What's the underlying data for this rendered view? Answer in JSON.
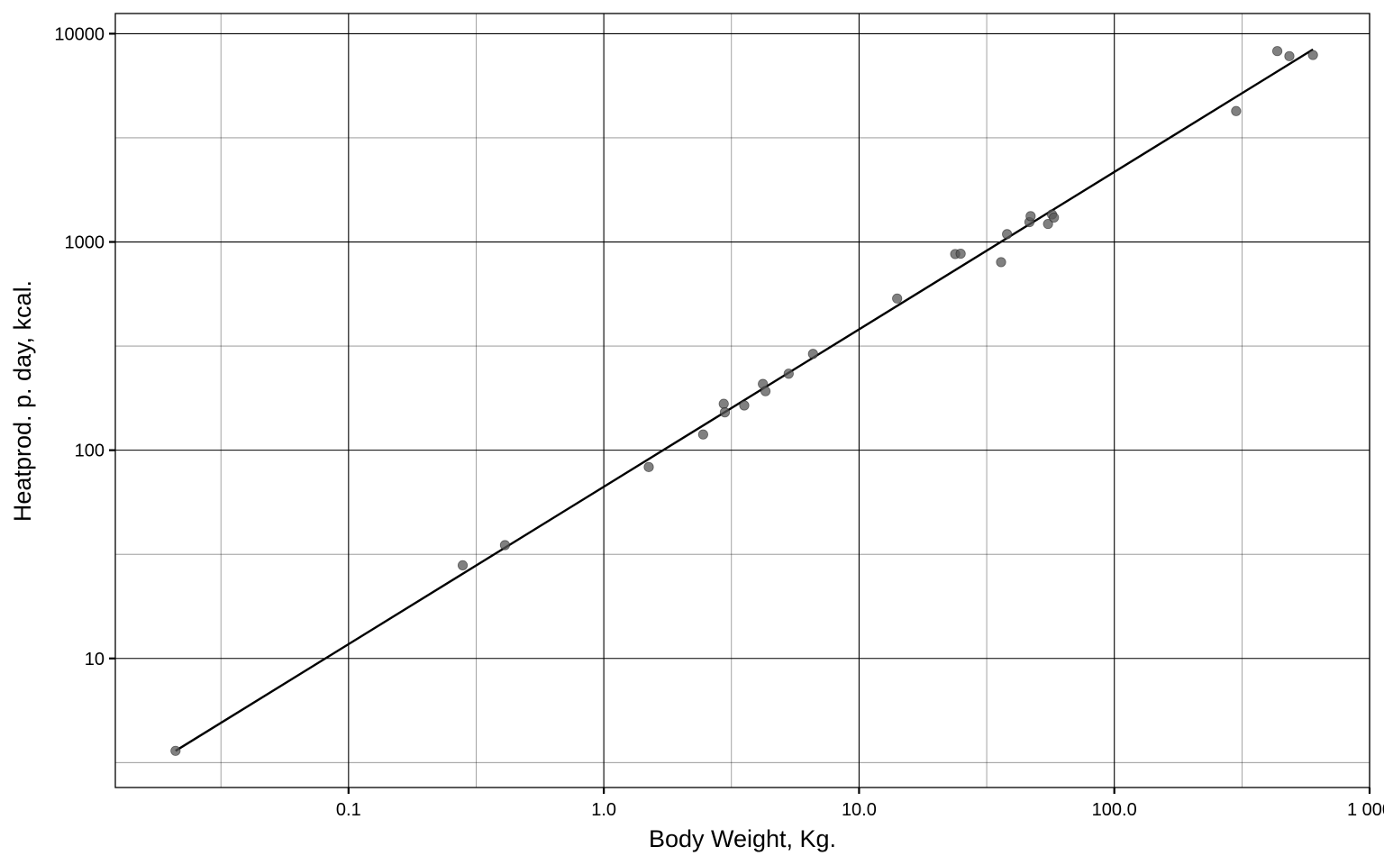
{
  "chart_data": {
    "type": "scatter",
    "title": "",
    "xlabel": "Body Weight, Kg.",
    "ylabel": "Heatprod. p. day, kcal.",
    "x_scale": "log10",
    "y_scale": "log10",
    "xlim": [
      0.0122,
      1000
    ],
    "ylim": [
      2.4,
      12500
    ],
    "x_ticks": [
      {
        "value": 0.1,
        "label": "0.1"
      },
      {
        "value": 1,
        "label": "1.0"
      },
      {
        "value": 10,
        "label": "10.0"
      },
      {
        "value": 100,
        "label": "100.0"
      },
      {
        "value": 1000,
        "label": "1 000"
      }
    ],
    "y_ticks": [
      {
        "value": 10,
        "label": "10"
      },
      {
        "value": 100,
        "label": "100"
      },
      {
        "value": 1000,
        "label": "1000"
      },
      {
        "value": 10000,
        "label": "10000"
      }
    ],
    "grid": true,
    "points": [
      {
        "x": 0.021,
        "y": 3.6
      },
      {
        "x": 0.28,
        "y": 28
      },
      {
        "x": 0.41,
        "y": 35
      },
      {
        "x": 1.5,
        "y": 83
      },
      {
        "x": 2.45,
        "y": 119
      },
      {
        "x": 2.95,
        "y": 167
      },
      {
        "x": 2.98,
        "y": 152
      },
      {
        "x": 3.55,
        "y": 164
      },
      {
        "x": 4.2,
        "y": 208
      },
      {
        "x": 4.3,
        "y": 192
      },
      {
        "x": 5.3,
        "y": 233
      },
      {
        "x": 6.6,
        "y": 290
      },
      {
        "x": 14.1,
        "y": 535
      },
      {
        "x": 23.8,
        "y": 875
      },
      {
        "x": 25,
        "y": 878
      },
      {
        "x": 36,
        "y": 800
      },
      {
        "x": 38,
        "y": 1090
      },
      {
        "x": 46.5,
        "y": 1245
      },
      {
        "x": 47,
        "y": 1330
      },
      {
        "x": 55,
        "y": 1220
      },
      {
        "x": 57,
        "y": 1355
      },
      {
        "x": 58,
        "y": 1310
      },
      {
        "x": 300,
        "y": 4250
      },
      {
        "x": 435,
        "y": 8250
      },
      {
        "x": 485,
        "y": 7800
      },
      {
        "x": 600,
        "y": 7900
      }
    ],
    "fit_line": {
      "x": [
        0.021,
        600
      ],
      "y": [
        3.6,
        8400
      ]
    },
    "point_color": "#555555",
    "line_color": "#000000"
  }
}
